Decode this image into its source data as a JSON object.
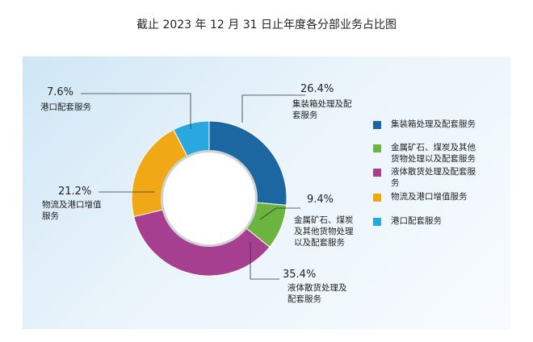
{
  "chart_data": {
    "type": "pie",
    "donut": true,
    "title": "截止 2023 年 12 月 31 日止年度各分部业务占比图",
    "categories": [
      "集装箱处理及配套服务",
      "金属矿石、煤炭及其他货物处理以及配套服务",
      "液体散货处理及配套服务",
      "物流及港口增值服务",
      "港口配套服务"
    ],
    "values": [
      26.4,
      9.4,
      35.4,
      21.2,
      7.6
    ],
    "value_labels": [
      "26.4%",
      "9.4%",
      "35.4%",
      "21.2%",
      "7.6%"
    ],
    "colors": [
      "#1c66a2",
      "#6bb43f",
      "#a63f8f",
      "#f1a817",
      "#29a8df"
    ],
    "legend": "right"
  }
}
